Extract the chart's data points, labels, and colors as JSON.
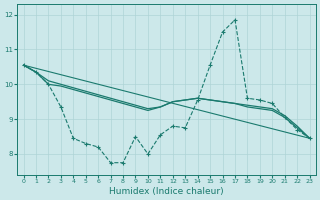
{
  "xlabel": "Humidex (Indice chaleur)",
  "bg_color": "#cce8ea",
  "grid_color": "#afd4d6",
  "line_color": "#1a7a6e",
  "xlim": [
    -0.5,
    23.5
  ],
  "ylim": [
    7.4,
    12.3
  ],
  "yticks": [
    8,
    9,
    10,
    11,
    12
  ],
  "xticks": [
    0,
    1,
    2,
    3,
    4,
    5,
    6,
    7,
    8,
    9,
    10,
    11,
    12,
    13,
    14,
    15,
    16,
    17,
    18,
    19,
    20,
    21,
    22,
    23
  ],
  "line1_x": [
    0,
    1,
    2,
    3,
    4,
    5,
    6,
    7,
    8,
    9,
    10,
    11,
    12,
    13,
    14,
    15,
    16,
    17,
    18,
    19,
    20,
    21,
    22,
    23
  ],
  "line1_y": [
    10.55,
    10.35,
    10.0,
    9.35,
    8.45,
    8.3,
    8.2,
    7.75,
    7.75,
    8.5,
    8.0,
    8.55,
    8.8,
    8.75,
    9.55,
    10.55,
    11.5,
    11.85,
    9.6,
    9.55,
    9.45,
    9.05,
    8.7,
    8.45
  ],
  "line2_x": [
    0,
    1,
    2,
    3,
    4,
    5,
    6,
    7,
    8,
    9,
    10,
    11,
    12,
    13,
    14,
    15,
    16,
    17,
    18,
    19,
    20,
    21,
    22,
    23
  ],
  "line2_y": [
    10.55,
    10.35,
    10.0,
    9.95,
    9.85,
    9.75,
    9.65,
    9.55,
    9.45,
    9.35,
    9.25,
    9.35,
    9.5,
    9.55,
    9.6,
    9.55,
    9.5,
    9.45,
    9.4,
    9.35,
    9.3,
    9.1,
    8.8,
    8.45
  ],
  "line3_x": [
    0,
    1,
    2,
    3,
    4,
    5,
    6,
    7,
    8,
    9,
    10,
    11,
    12,
    13,
    14,
    15,
    16,
    17,
    18,
    19,
    20,
    21,
    22,
    23
  ],
  "line3_y": [
    10.55,
    10.35,
    10.1,
    10.0,
    9.9,
    9.8,
    9.7,
    9.6,
    9.5,
    9.4,
    9.3,
    9.35,
    9.5,
    9.55,
    9.6,
    9.55,
    9.5,
    9.45,
    9.35,
    9.3,
    9.25,
    9.05,
    8.75,
    8.45
  ],
  "line4_x": [
    0,
    23
  ],
  "line4_y": [
    10.55,
    8.45
  ]
}
